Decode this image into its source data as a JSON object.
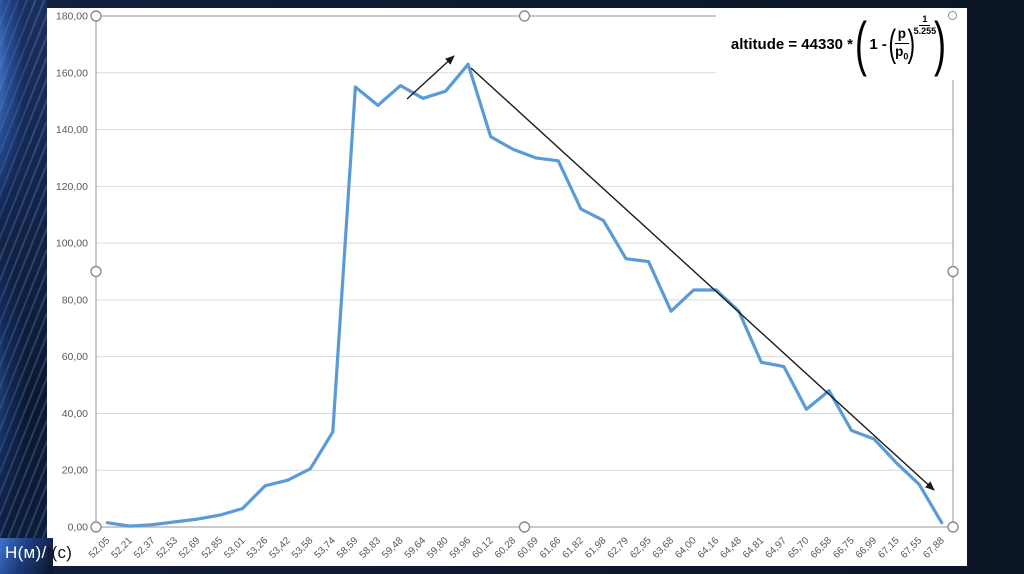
{
  "slide": {
    "units_label": {
      "white_part": "H(м)/",
      "black_part": "t(с)"
    }
  },
  "formula": {
    "prefix": "altitude = 44330 * ",
    "one_minus": " 1 - ",
    "paren_open": "(",
    "paren_close": ")",
    "frac_num": "p",
    "frac_den_base": "p",
    "frac_den_sub": "0",
    "exp_num": "1",
    "exp_den": "5.255"
  },
  "chart_data": {
    "type": "line",
    "title": "",
    "xlabel": "t(с)",
    "ylabel": "H(м)",
    "categories": [
      "52,05",
      "52,21",
      "52,37",
      "52,53",
      "52,69",
      "52,85",
      "53,01",
      "53,26",
      "53,42",
      "53,58",
      "53,74",
      "58,59",
      "58,83",
      "59,48",
      "59,64",
      "59,80",
      "59,96",
      "60,12",
      "60,28",
      "60,69",
      "61,66",
      "61,82",
      "61,98",
      "62,79",
      "62,95",
      "63,68",
      "64,00",
      "64,16",
      "64,48",
      "64,81",
      "64,97",
      "65,70",
      "66,58",
      "66,75",
      "66,99",
      "67,15",
      "67,55",
      "67,88"
    ],
    "values": [
      1.5,
      0.3,
      0.8,
      1.8,
      2.8,
      4.2,
      6.5,
      14.5,
      16.5,
      20.5,
      33.5,
      155,
      148.5,
      155.5,
      151,
      153.5,
      163,
      137.5,
      133,
      130,
      129,
      112,
      108,
      94.5,
      93.5,
      76,
      83.5,
      83.5,
      76,
      58,
      56.5,
      41.5,
      48,
      34,
      31,
      22.5,
      15,
      1.5
    ],
    "ylim": [
      0,
      180
    ],
    "ytick_values": [
      0,
      20,
      40,
      60,
      80,
      100,
      120,
      140,
      160,
      180
    ],
    "ytick_labels": [
      "0,00",
      "20,00",
      "40,00",
      "60,00",
      "80,00",
      "100,00",
      "120,00",
      "140,00",
      "160,00",
      "180,00"
    ],
    "grid": true,
    "legend": "none",
    "line_color": "#5B9BD5",
    "colors": {
      "grid": "#d9d9d9",
      "axis": "#a6a6a6",
      "labels": "#595959",
      "arrow": "#1a1a1a",
      "handle_stroke": "#8c8c8c"
    },
    "annotations": [
      {
        "type": "arrow",
        "from": [
          407,
          99
        ],
        "to": [
          454,
          56
        ]
      },
      {
        "type": "arrow",
        "from": [
          471,
          68
        ],
        "to": [
          934,
          490
        ]
      }
    ]
  }
}
